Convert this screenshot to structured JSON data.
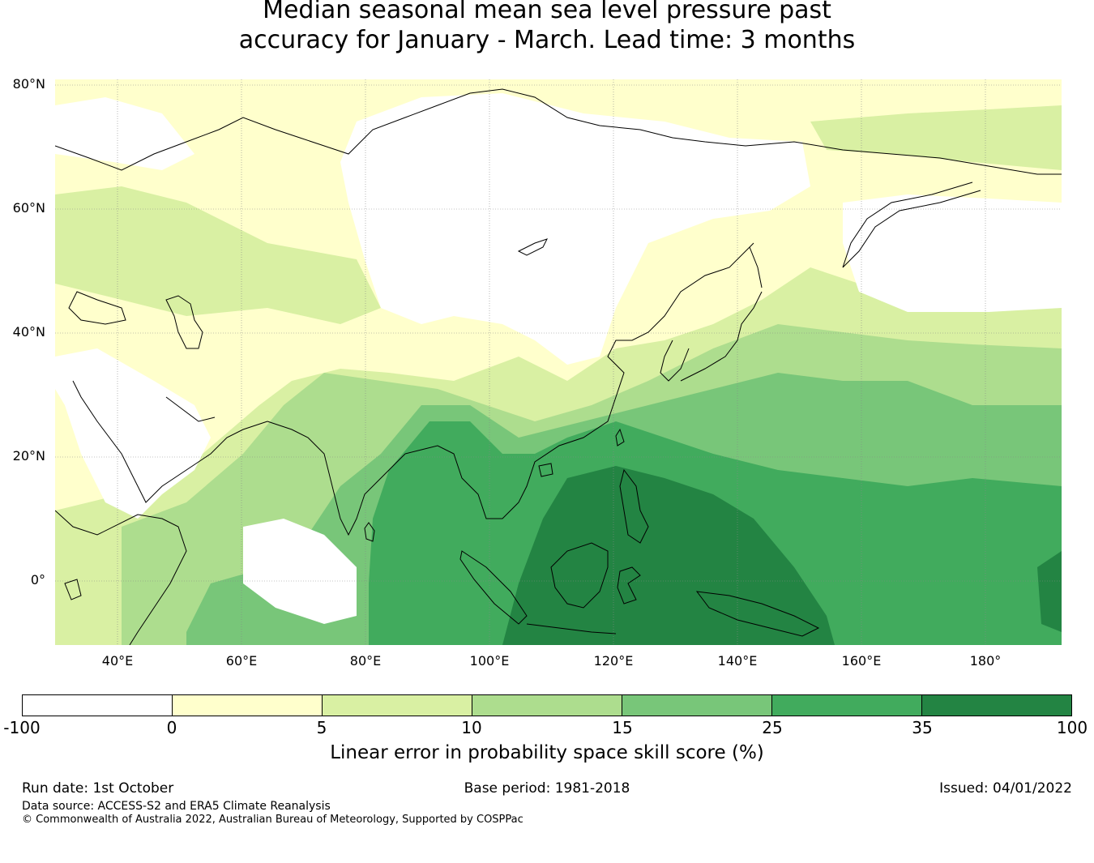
{
  "title": {
    "line1": "Median seasonal mean sea level pressure past",
    "line2": "accuracy for January - March. Lead time: 3 months"
  },
  "map": {
    "lat_labels": [
      "80°N",
      "60°N",
      "40°N",
      "20°N",
      "0°"
    ],
    "lon_labels": [
      "40°E",
      "60°E",
      "80°E",
      "100°E",
      "120°E",
      "140°E",
      "160°E",
      "180°"
    ],
    "colors": {
      "neg": "#ffffff",
      "c0_5": "#ffffcc",
      "c5_10": "#d9f0a3",
      "c10_15": "#addd8e",
      "c15_25": "#78c679",
      "c25_35": "#41ab5d",
      "c35_100": "#238443",
      "coast": "#000000",
      "grid": "#888888"
    }
  },
  "colorbar": {
    "ticks": [
      "-100",
      "0",
      "5",
      "10",
      "15",
      "25",
      "35",
      "100"
    ],
    "colors": [
      "#ffffff",
      "#ffffcc",
      "#d9f0a3",
      "#addd8e",
      "#78c679",
      "#41ab5d",
      "#238443"
    ],
    "label": "Linear error in probability space skill score (%)"
  },
  "footer": {
    "run_date": "Run date: 1st October",
    "base_period": "Base period: 1981-2018",
    "issued": "Issued: 04/01/2022",
    "data_source": "Data source: ACCESS-S2 and ERA5 Climate Reanalysis",
    "copyright": "© Commonwealth of Australia 2022, Australian Bureau of Meteorology, Supported by COSPPac"
  }
}
